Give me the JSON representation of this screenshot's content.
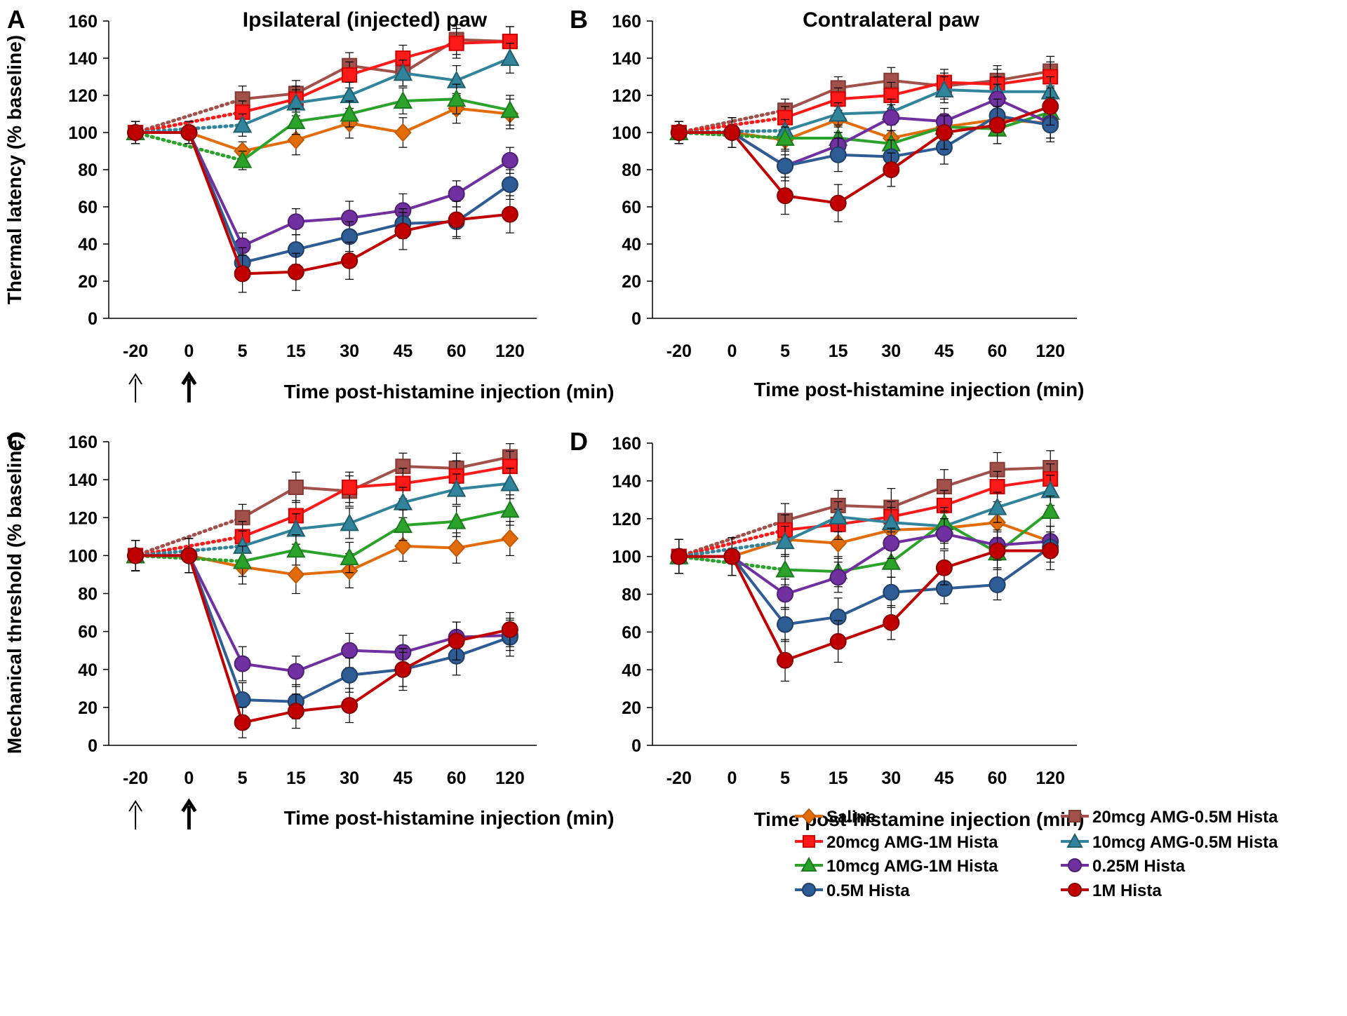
{
  "figure": {
    "series_styles": [
      {
        "key": "saline",
        "color": "#E36C0A",
        "marker": "diamond",
        "outline": "#C05A08"
      },
      {
        "key": "amg20_05",
        "color": "#A2504A",
        "marker": "square",
        "outline": "#833A35"
      },
      {
        "key": "amg20_1",
        "color": "#FF1A1A",
        "marker": "square",
        "outline": "#D00000"
      },
      {
        "key": "amg10_05",
        "color": "#31849B",
        "marker": "triangle",
        "outline": "#215E6E"
      },
      {
        "key": "amg10_1",
        "color": "#2BA32B",
        "marker": "triangle",
        "outline": "#1E7A1E"
      },
      {
        "key": "h025",
        "color": "#7030A0",
        "marker": "circle",
        "outline": "#4E1F73"
      },
      {
        "key": "h05",
        "color": "#2E5C94",
        "marker": "circle",
        "outline": "#1F3F66"
      },
      {
        "key": "h1",
        "color": "#C00000",
        "marker": "circle",
        "outline": "#8A0000"
      }
    ],
    "legend": {
      "entries": [
        {
          "label": "Saline",
          "series": "saline"
        },
        {
          "label": "20mcg AMG-0.5M Hista",
          "series": "amg20_05"
        },
        {
          "label": "20mcg AMG-1M Hista",
          "series": "amg20_1"
        },
        {
          "label": "10mcg AMG-0.5M Hista",
          "series": "amg10_05"
        },
        {
          "label": "10mcg AMG-1M Hista",
          "series": "amg10_1"
        },
        {
          "label": "0.25M Hista",
          "series": "h025"
        },
        {
          "label": "0.5M Hista",
          "series": "h05"
        },
        {
          "label": "1M Hista",
          "series": "h1"
        }
      ],
      "placement": "panel D bottom"
    }
  },
  "chart_data": [
    {
      "panel": "A",
      "type": "line",
      "title": "Ipsilateral (injected) paw",
      "ylabel": "Thermal latency (% baseline)",
      "xlabel": "Time post-histamine injection (min)",
      "categories": [
        "-20",
        "0",
        "5",
        "15",
        "30",
        "45",
        "60",
        "120"
      ],
      "ylim": [
        0,
        160
      ],
      "yticks": [
        0,
        20,
        40,
        60,
        80,
        100,
        120,
        140,
        160
      ],
      "arrows": [
        "-20",
        "0"
      ],
      "series": [
        {
          "key": "saline",
          "values": [
            100,
            100,
            90,
            96,
            105,
            100,
            113,
            110
          ],
          "err": [
            6,
            6,
            5,
            8,
            8,
            8,
            8,
            8
          ]
        },
        {
          "key": "amg20_05",
          "values": [
            100,
            null,
            118,
            121,
            136,
            132,
            150,
            149
          ],
          "err": [
            6,
            null,
            7,
            7,
            7,
            7,
            8,
            8
          ]
        },
        {
          "key": "amg20_1",
          "values": [
            100,
            null,
            111,
            118,
            131,
            140,
            148,
            149
          ],
          "err": [
            6,
            null,
            6,
            7,
            7,
            7,
            8,
            8
          ]
        },
        {
          "key": "amg10_05",
          "values": [
            100,
            null,
            104,
            116,
            120,
            132,
            128,
            140
          ],
          "err": [
            6,
            null,
            6,
            7,
            7,
            7,
            8,
            8
          ]
        },
        {
          "key": "amg10_1",
          "values": [
            100,
            null,
            85,
            106,
            110,
            117,
            118,
            112
          ],
          "err": [
            6,
            null,
            5,
            7,
            7,
            7,
            8,
            8
          ]
        },
        {
          "key": "h025",
          "values": [
            100,
            100,
            39,
            52,
            54,
            58,
            67,
            85
          ],
          "err": [
            6,
            6,
            7,
            7,
            9,
            9,
            7,
            7
          ]
        },
        {
          "key": "h05",
          "values": [
            100,
            100,
            30,
            37,
            44,
            51,
            52,
            72
          ],
          "err": [
            6,
            6,
            8,
            8,
            8,
            8,
            8,
            8
          ]
        },
        {
          "key": "h1",
          "values": [
            100,
            100,
            24,
            25,
            31,
            47,
            53,
            56
          ],
          "err": [
            6,
            6,
            10,
            10,
            10,
            10,
            10,
            10
          ]
        }
      ]
    },
    {
      "panel": "B",
      "type": "line",
      "title": "Contralateral paw",
      "ylabel": "",
      "xlabel": "Time post-histamine injection (min)",
      "categories": [
        "-20",
        "0",
        "5",
        "15",
        "30",
        "45",
        "60",
        "120"
      ],
      "ylim": [
        0,
        160
      ],
      "yticks": [
        0,
        20,
        40,
        60,
        80,
        100,
        120,
        140,
        160
      ],
      "arrows": [],
      "series": [
        {
          "key": "saline",
          "values": [
            100,
            100,
            96,
            107,
            97,
            103,
            107,
            105
          ],
          "err": [
            6,
            8,
            6,
            7,
            7,
            7,
            8,
            8
          ]
        },
        {
          "key": "amg20_05",
          "values": [
            100,
            null,
            112,
            124,
            128,
            125,
            128,
            133
          ],
          "err": [
            6,
            null,
            6,
            6,
            7,
            7,
            8,
            8
          ]
        },
        {
          "key": "amg20_1",
          "values": [
            100,
            null,
            108,
            118,
            120,
            127,
            126,
            130
          ],
          "err": [
            6,
            null,
            6,
            6,
            7,
            7,
            8,
            8
          ]
        },
        {
          "key": "amg10_05",
          "values": [
            100,
            null,
            101,
            110,
            111,
            123,
            122,
            122
          ],
          "err": [
            6,
            null,
            6,
            6,
            7,
            7,
            8,
            8
          ]
        },
        {
          "key": "amg10_1",
          "values": [
            100,
            null,
            97,
            97,
            94,
            103,
            102,
            111
          ],
          "err": [
            6,
            null,
            6,
            6,
            7,
            7,
            8,
            8
          ]
        },
        {
          "key": "h025",
          "values": [
            100,
            100,
            82,
            93,
            108,
            106,
            118,
            105
          ],
          "err": [
            6,
            8,
            6,
            7,
            7,
            7,
            8,
            8
          ]
        },
        {
          "key": "h05",
          "values": [
            100,
            100,
            82,
            88,
            87,
            92,
            109,
            104
          ],
          "err": [
            6,
            8,
            8,
            9,
            9,
            9,
            9,
            9
          ]
        },
        {
          "key": "h1",
          "values": [
            100,
            100,
            66,
            62,
            80,
            100,
            104,
            114
          ],
          "err": [
            6,
            8,
            10,
            10,
            9,
            9,
            10,
            10
          ]
        }
      ]
    },
    {
      "panel": "C",
      "type": "line",
      "title": "",
      "ylabel": "Mechanical threshold (% baseline)",
      "xlabel": "Time post-histamine injection (min)",
      "categories": [
        "-20",
        "0",
        "5",
        "15",
        "30",
        "45",
        "60",
        "120"
      ],
      "ylim": [
        0,
        160
      ],
      "yticks": [
        0,
        20,
        40,
        60,
        80,
        100,
        120,
        140,
        160
      ],
      "arrows": [
        "-20",
        "0"
      ],
      "series": [
        {
          "key": "saline",
          "values": [
            100,
            100,
            94,
            90,
            92,
            105,
            104,
            109
          ],
          "err": [
            8,
            9,
            9,
            10,
            9,
            8,
            8,
            9
          ]
        },
        {
          "key": "amg20_05",
          "values": [
            100,
            null,
            120,
            136,
            134,
            147,
            146,
            152
          ],
          "err": [
            8,
            null,
            7,
            8,
            8,
            7,
            8,
            7
          ]
        },
        {
          "key": "amg20_1",
          "values": [
            100,
            null,
            110,
            121,
            136,
            138,
            142,
            147
          ],
          "err": [
            8,
            null,
            8,
            8,
            8,
            8,
            8,
            8
          ]
        },
        {
          "key": "amg10_05",
          "values": [
            100,
            null,
            105,
            114,
            117,
            128,
            135,
            138
          ],
          "err": [
            8,
            null,
            8,
            8,
            8,
            8,
            8,
            8
          ]
        },
        {
          "key": "amg10_1",
          "values": [
            100,
            null,
            97,
            103,
            99,
            116,
            118,
            124
          ],
          "err": [
            8,
            null,
            8,
            8,
            8,
            8,
            8,
            8
          ]
        },
        {
          "key": "h025",
          "values": [
            100,
            100,
            43,
            39,
            50,
            49,
            57,
            58
          ],
          "err": [
            8,
            9,
            9,
            8,
            9,
            9,
            8,
            8
          ]
        },
        {
          "key": "h05",
          "values": [
            100,
            100,
            24,
            23,
            37,
            40,
            47,
            57
          ],
          "err": [
            8,
            9,
            9,
            9,
            9,
            11,
            10,
            10
          ]
        },
        {
          "key": "h1",
          "values": [
            100,
            100,
            12,
            18,
            21,
            40,
            55,
            61
          ],
          "err": [
            8,
            9,
            8,
            9,
            9,
            9,
            10,
            9
          ]
        }
      ]
    },
    {
      "panel": "D",
      "type": "line",
      "title": "",
      "ylabel": "",
      "xlabel": "Time post-histamine injection (min)",
      "categories": [
        "-20",
        "0",
        "5",
        "15",
        "30",
        "45",
        "60",
        "120"
      ],
      "ylim": [
        0,
        160
      ],
      "yticks": [
        0,
        20,
        40,
        60,
        80,
        100,
        120,
        140,
        160
      ],
      "arrows": [],
      "series": [
        {
          "key": "saline",
          "values": [
            100,
            100,
            109,
            107,
            114,
            115,
            118,
            108
          ],
          "err": [
            9,
            10,
            8,
            8,
            8,
            8,
            8,
            8
          ]
        },
        {
          "key": "amg20_05",
          "values": [
            100,
            null,
            119,
            127,
            126,
            137,
            146,
            147
          ],
          "err": [
            9,
            null,
            9,
            8,
            10,
            9,
            9,
            9
          ]
        },
        {
          "key": "amg20_1",
          "values": [
            100,
            null,
            114,
            117,
            121,
            127,
            137,
            141
          ],
          "err": [
            9,
            null,
            8,
            8,
            8,
            8,
            8,
            8
          ]
        },
        {
          "key": "amg10_05",
          "values": [
            100,
            null,
            108,
            121,
            118,
            116,
            126,
            135
          ],
          "err": [
            9,
            null,
            8,
            8,
            8,
            8,
            8,
            8
          ]
        },
        {
          "key": "amg10_1",
          "values": [
            100,
            null,
            93,
            92,
            97,
            118,
            102,
            124
          ],
          "err": [
            9,
            null,
            8,
            8,
            8,
            8,
            8,
            8
          ]
        },
        {
          "key": "h025",
          "values": [
            100,
            100,
            80,
            89,
            107,
            112,
            106,
            108
          ],
          "err": [
            9,
            10,
            8,
            8,
            8,
            8,
            8,
            8
          ]
        },
        {
          "key": "h05",
          "values": [
            100,
            100,
            64,
            68,
            81,
            83,
            85,
            105
          ],
          "err": [
            9,
            10,
            9,
            10,
            8,
            8,
            8,
            8
          ]
        },
        {
          "key": "h1",
          "values": [
            100,
            100,
            45,
            55,
            65,
            94,
            103,
            103
          ],
          "err": [
            9,
            10,
            11,
            11,
            9,
            9,
            10,
            10
          ]
        }
      ]
    }
  ]
}
